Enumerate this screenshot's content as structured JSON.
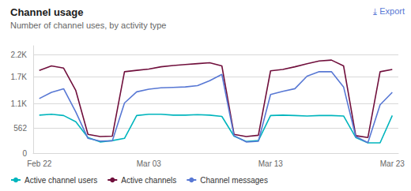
{
  "chart_data": {
    "type": "line",
    "title": "Channel usage",
    "subtitle": "Number of channel uses, by activity type",
    "annotations": [
      "⤓ Export"
    ],
    "categories": [
      "Feb 22",
      null,
      null,
      null,
      null,
      null,
      null,
      null,
      null,
      "Mar 03",
      null,
      null,
      null,
      null,
      null,
      null,
      null,
      null,
      null,
      "Mar 13",
      null,
      null,
      null,
      null,
      null,
      null,
      null,
      null,
      null,
      "Mar 23"
    ],
    "series": [
      {
        "name": "Active channel users",
        "color": "#00B5BD",
        "values": [
          850,
          870,
          840,
          700,
          350,
          250,
          280,
          330,
          840,
          870,
          870,
          850,
          850,
          860,
          850,
          820,
          380,
          260,
          280,
          840,
          850,
          840,
          830,
          840,
          840,
          830,
          350,
          230,
          230,
          840
        ]
      },
      {
        "name": "Active channels",
        "color": "#700F3C",
        "values": [
          1850,
          1950,
          1900,
          1400,
          420,
          370,
          380,
          1820,
          1850,
          1880,
          1930,
          1960,
          1980,
          2000,
          2020,
          1950,
          420,
          370,
          400,
          1840,
          1870,
          1930,
          2000,
          2060,
          2080,
          1950,
          390,
          350,
          1820,
          1870
        ]
      },
      {
        "name": "Channel messages",
        "color": "#5878D4",
        "values": [
          1220,
          1360,
          1440,
          920,
          330,
          270,
          275,
          1120,
          1370,
          1430,
          1460,
          1470,
          1480,
          1510,
          1620,
          1760,
          390,
          250,
          265,
          1310,
          1380,
          1440,
          1720,
          1820,
          1820,
          1480,
          370,
          235,
          1080,
          1360
        ]
      }
    ],
    "ylim": [
      0,
      2400
    ],
    "yticks": [
      0,
      562,
      {
        "value": 1100,
        "label": "1.1K"
      },
      {
        "value": 1700,
        "label": "1.7K"
      },
      {
        "value": 2200,
        "label": "2.2K"
      }
    ],
    "grid": true,
    "legend": "bottom"
  }
}
